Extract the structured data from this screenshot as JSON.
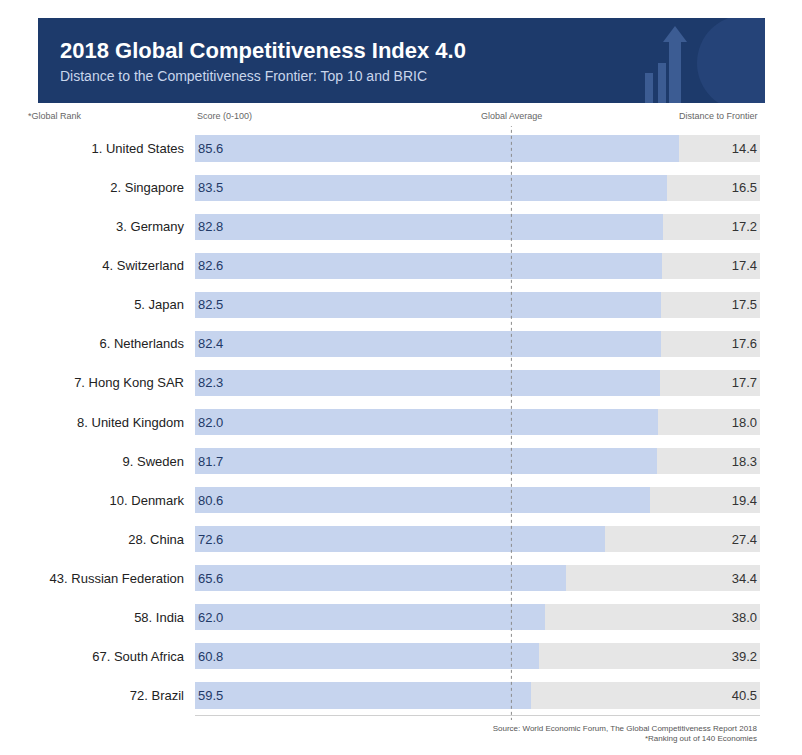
{
  "chart_data": {
    "type": "bar",
    "orientation": "horizontal",
    "stacked": true,
    "title": "2018 Global Competitiveness Index 4.0",
    "subtitle": "Distance to the Competitiveness Frontier: Top 10 and BRIC",
    "rank_header": "*Global Rank",
    "categories": [
      "1. United States",
      "2. Singapore",
      "3. Germany",
      "4. Switzerland",
      "5. Japan",
      "6. Netherlands",
      "7. Hong Kong SAR",
      "8. United Kingdom",
      "9. Sweden",
      "10. Denmark",
      "28. China",
      "43. Russian Federation",
      "58. India",
      "67. South Africa",
      "72. Brazil"
    ],
    "series": [
      {
        "name": "Score (0-100)",
        "color": "#c6d4ee",
        "values": [
          85.6,
          83.5,
          82.8,
          82.6,
          82.5,
          82.4,
          82.3,
          82.0,
          81.7,
          80.6,
          72.6,
          65.6,
          62.0,
          60.8,
          59.5
        ],
        "value_labels": [
          "85.6",
          "83.5",
          "82.8",
          "82.6",
          "82.5",
          "82.4",
          "82.3",
          "82.0",
          "81.7",
          "80.6",
          "72.6",
          "65.6",
          "62.0",
          "60.8",
          "59.5"
        ]
      },
      {
        "name": "Distance to Frontier",
        "color": "#e6e6e6",
        "values": [
          14.4,
          16.5,
          17.2,
          17.4,
          17.5,
          17.6,
          17.7,
          18.0,
          18.3,
          19.4,
          27.4,
          34.4,
          38.0,
          39.2,
          40.5
        ],
        "value_labels": [
          "14.4",
          "16.5",
          "17.2",
          "17.4",
          "17.5",
          "17.6",
          "17.7",
          "18.0",
          "18.3",
          "19.4",
          "27.4",
          "34.4",
          "38.0",
          "39.2",
          "40.5"
        ]
      }
    ],
    "reference_line": {
      "label": "Global Average",
      "value": 56
    },
    "xlim": [
      0,
      100
    ],
    "xticks": [],
    "tick_labels": "y",
    "grid": false,
    "data_labels": true,
    "source": "Source: World Economic Forum, The Global Competitiveness Report 2018",
    "footnote": "*Ranking out of 140 Economies"
  }
}
